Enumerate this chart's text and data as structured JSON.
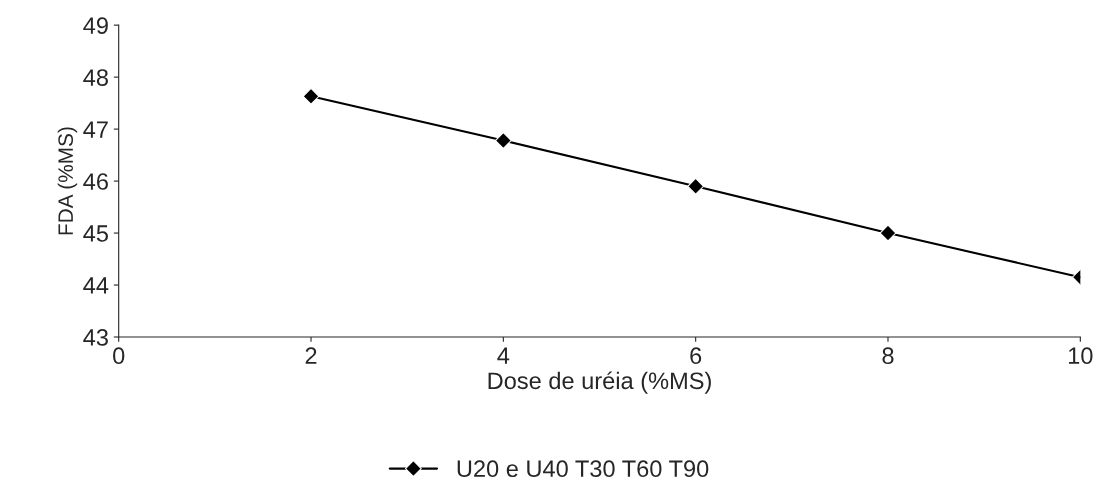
{
  "chart_data": {
    "type": "line",
    "xlabel": "Dose de uréia (%MS)",
    "ylabel": "FDA (%MS)",
    "x": [
      2,
      4,
      6,
      8,
      10
    ],
    "series": [
      {
        "name": "U20 e U40 T30 T60 T90",
        "color": "#000000",
        "values": [
          47.63,
          46.78,
          45.9,
          45.0,
          44.15
        ]
      }
    ],
    "xlim": [
      0,
      10
    ],
    "xticks": [
      0,
      2,
      4,
      6,
      8,
      10
    ],
    "ylim": [
      43,
      49
    ],
    "yticks": [
      43,
      44,
      45,
      46,
      47,
      48,
      49
    ],
    "grid": false,
    "legend": "bottom",
    "marker": "diamond",
    "line_style": "solid"
  }
}
